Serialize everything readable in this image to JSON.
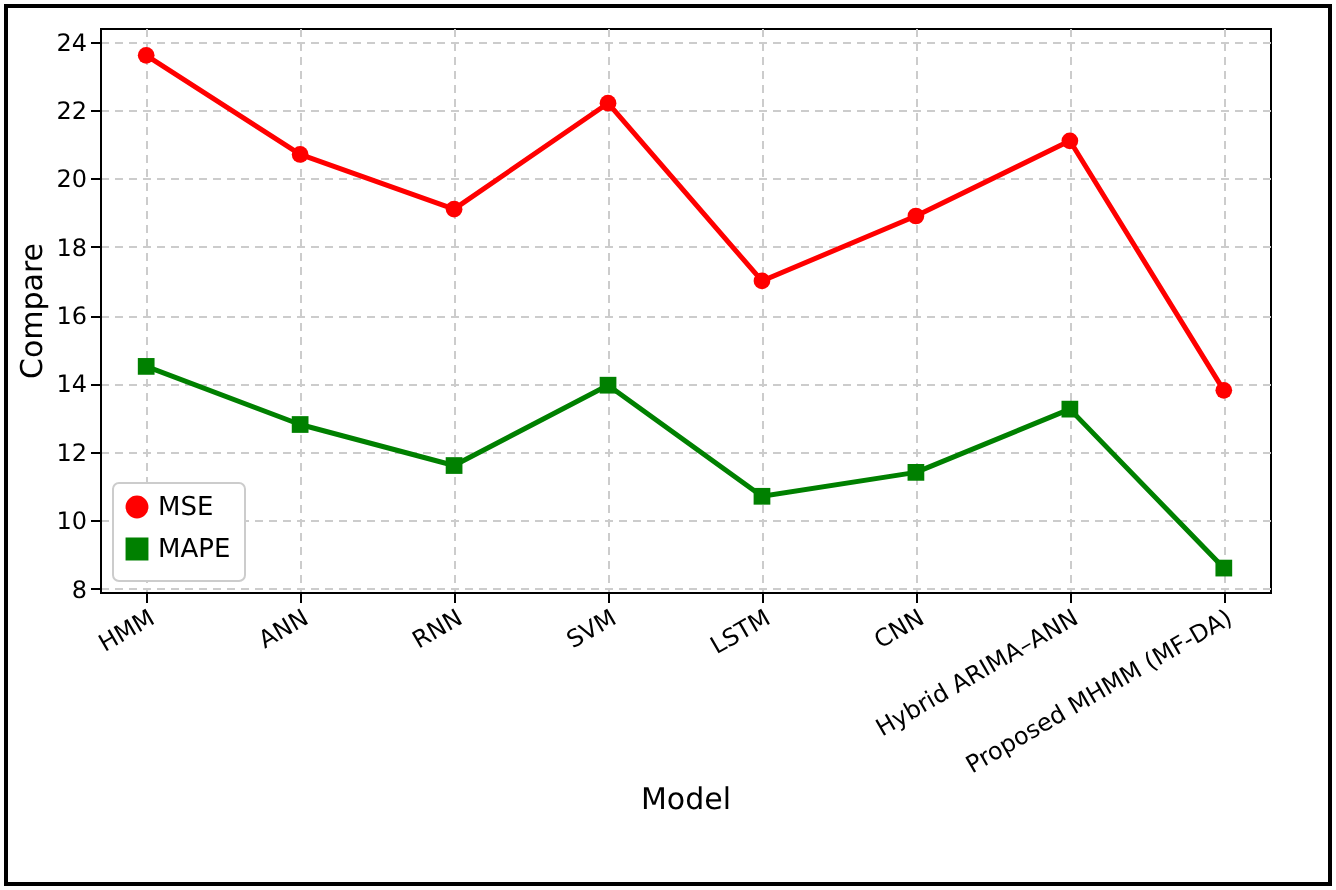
{
  "chart_data": {
    "type": "line",
    "xlabel": "Model",
    "ylabel": "Compare",
    "categories": [
      "HMM",
      "ANN",
      "RNN",
      "SVM",
      "LSTM",
      "CNN",
      "Hybrid ARIMA–ANN",
      "Proposed MHMM (MF-DA)"
    ],
    "series": [
      {
        "name": "MSE",
        "color": "#ff0000",
        "marker": "circle",
        "values": [
          23.6,
          20.7,
          19.1,
          22.2,
          17.0,
          18.9,
          21.1,
          13.8
        ]
      },
      {
        "name": "MAPE",
        "color": "#008000",
        "marker": "square",
        "values": [
          14.5,
          12.8,
          11.6,
          13.95,
          10.7,
          11.4,
          13.25,
          8.6
        ]
      }
    ],
    "ylim": [
      7.9,
      24.4
    ],
    "yticks": [
      8,
      10,
      12,
      14,
      16,
      18,
      20,
      22,
      24
    ],
    "grid": true,
    "legend": "bottom left",
    "line_style": "solid"
  }
}
